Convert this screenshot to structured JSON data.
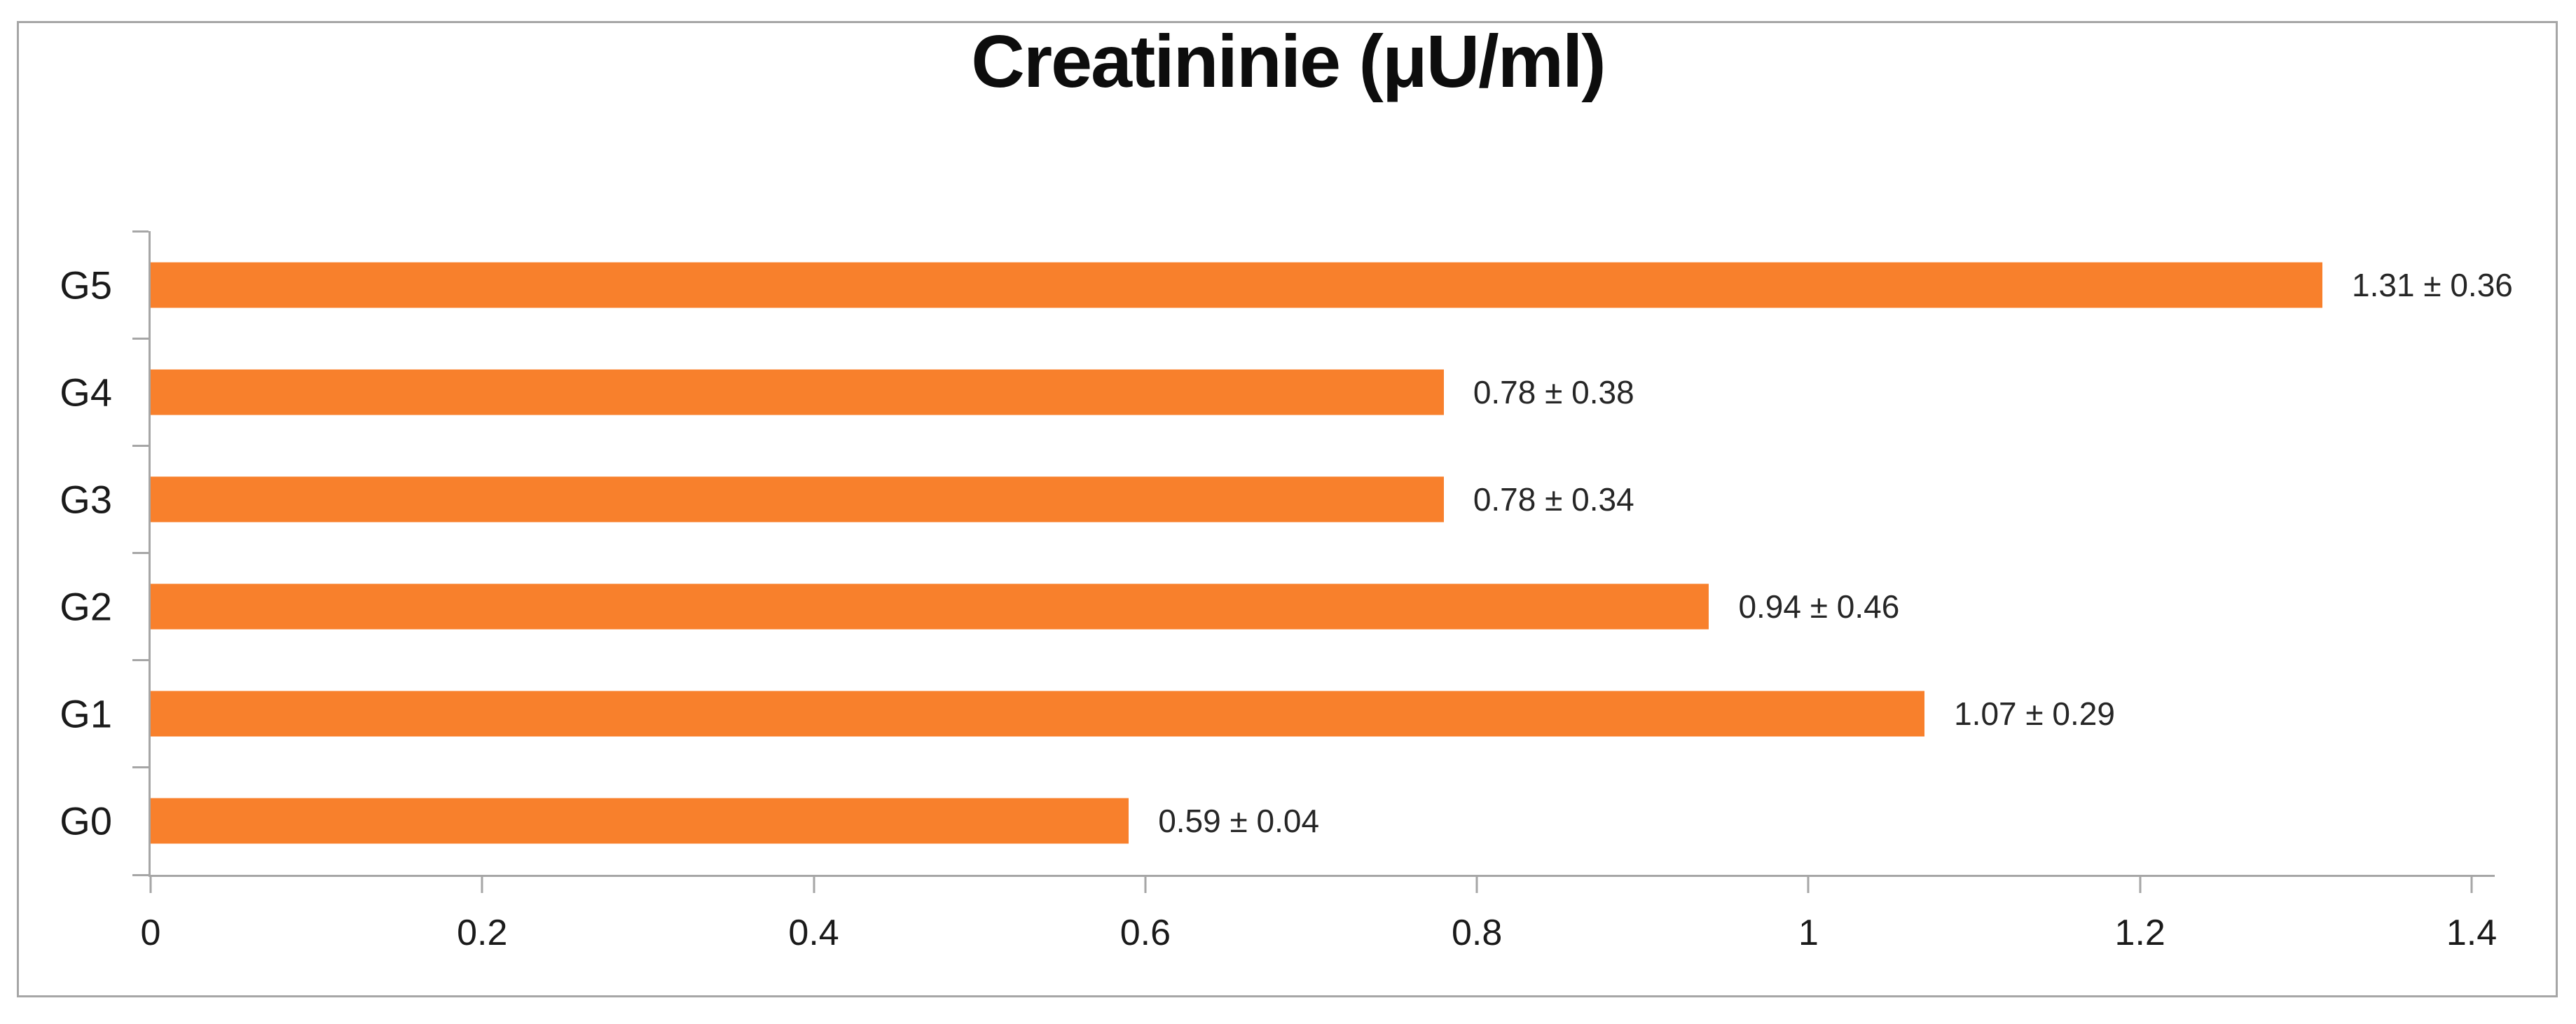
{
  "chart_data": {
    "type": "bar",
    "orientation": "horizontal",
    "title": "Creatininie (μU/ml)",
    "categories": [
      "G5",
      "G4",
      "G3",
      "G2",
      "G1",
      "G0"
    ],
    "values": [
      1.31,
      0.78,
      0.78,
      0.94,
      1.07,
      0.59
    ],
    "errors": [
      0.36,
      0.38,
      0.34,
      0.46,
      0.29,
      0.04
    ],
    "data_labels": [
      "1.31 ± 0.36",
      "0.78 ± 0.38",
      "0.78 ± 0.34",
      "0.94 ± 0.46",
      "1.07 ± 0.29",
      "0.59 ± 0.04"
    ],
    "x_ticks": [
      "0",
      "0.2",
      "0.4",
      "0.6",
      "0.8",
      "1",
      "1.2",
      "1.4"
    ],
    "x_tick_values": [
      0,
      0.2,
      0.4,
      0.6,
      0.8,
      1.0,
      1.2,
      1.4
    ],
    "xlim": [
      0,
      1.4
    ],
    "xlabel": "",
    "ylabel": "",
    "grid": false,
    "legend": false,
    "bar_color": "#F8802C",
    "axis_color": "#A6A6A6",
    "text_color": "#1A1A1A",
    "background_color": "#FFFFFF"
  }
}
